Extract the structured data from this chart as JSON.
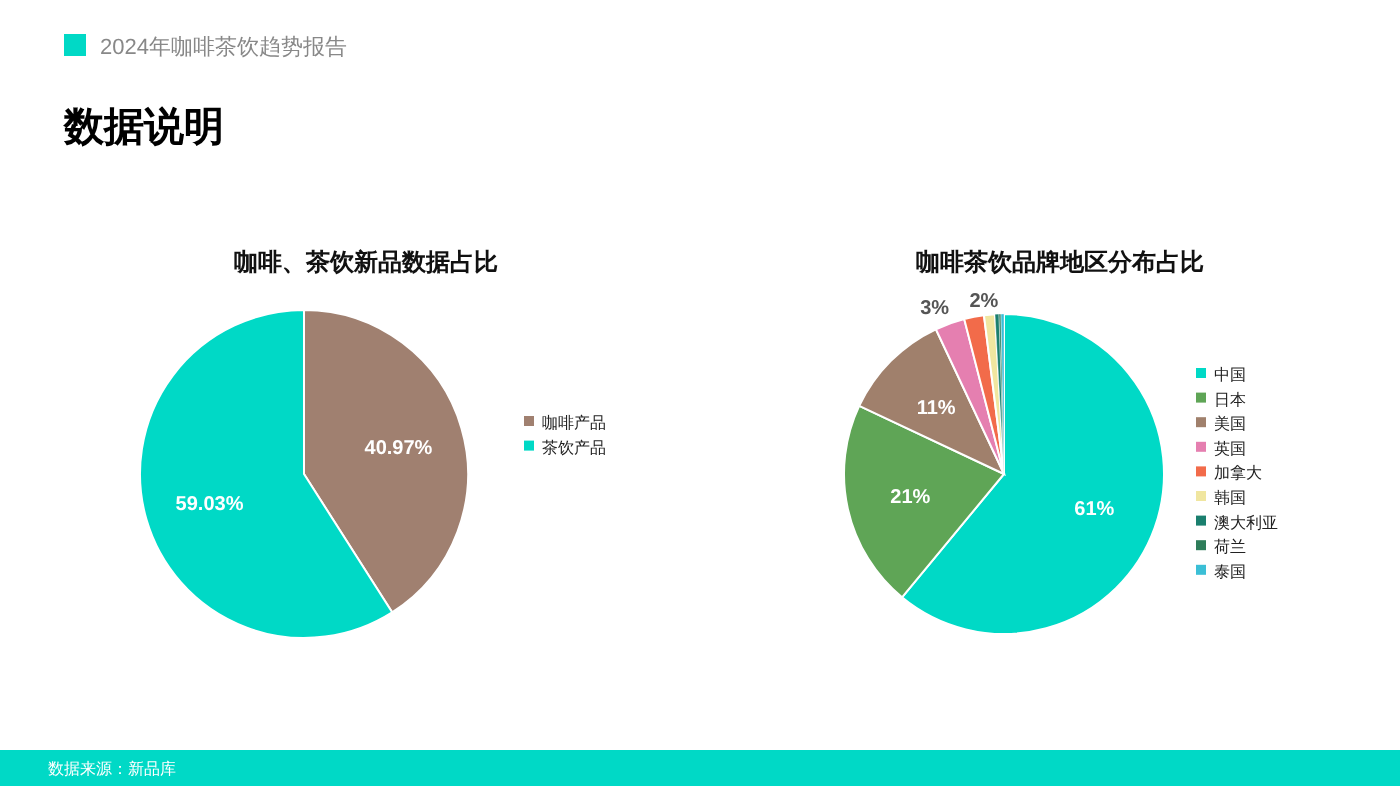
{
  "chart_data": [
    {
      "type": "pie",
      "title": "咖啡、茶饮新品数据占比",
      "categories": [
        "咖啡产品",
        "茶饮产品"
      ],
      "values": [
        40.97,
        59.03
      ],
      "colors": [
        "#a08070",
        "#00d9c6"
      ],
      "value_labels": [
        "40.97%",
        "59.03%"
      ],
      "legend": "right",
      "annotations": [
        "2024年咖啡茶饮趋势报告",
        "数据说明",
        "数据来源：新品库"
      ]
    },
    {
      "type": "pie",
      "title": "咖啡茶饮品牌地区分布占比",
      "categories": [
        "中国",
        "日本",
        "美国",
        "英国",
        "加拿大",
        "韩国",
        "澳大利亚",
        "荷兰",
        "泰国"
      ],
      "values": [
        61,
        21,
        11,
        3,
        2,
        1.1,
        0.4,
        0.2,
        0.3
      ],
      "colors": [
        "#00d9c6",
        "#5fa556",
        "#a0806c",
        "#e57fb0",
        "#f26b4a",
        "#f0e6a0",
        "#1a7f6e",
        "#2e7d5a",
        "#3bbfd6"
      ],
      "value_labels": [
        "61%",
        "21%",
        "11%",
        "3%",
        "2%",
        null,
        null,
        null,
        null
      ],
      "legend": "right"
    }
  ]
}
